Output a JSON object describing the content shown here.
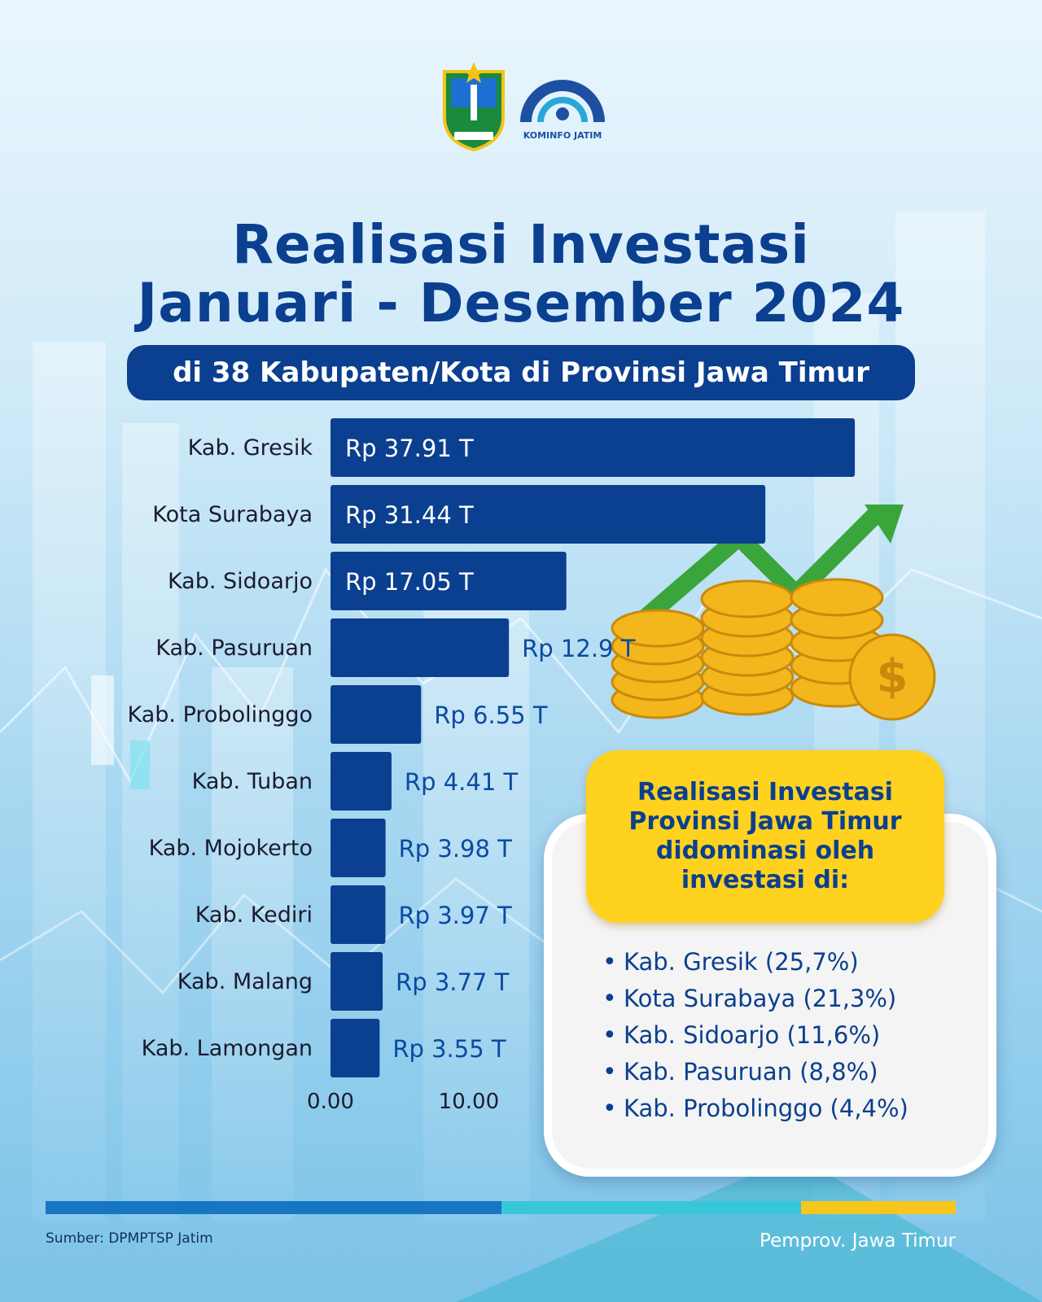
{
  "header": {
    "title_line1": "Realisasi Investasi",
    "title_line2": "Januari - Desember 2024",
    "subtitle": "di 38 Kabupaten/Kota di Provinsi Jawa Timur"
  },
  "logos": {
    "left": "provincial-coat-of-arms",
    "right_text": "KOMINFO JATIM"
  },
  "chart_data": {
    "type": "bar",
    "orientation": "horizontal",
    "categories": [
      "Kab. Gresik",
      "Kota Surabaya",
      "Kab. Sidoarjo",
      "Kab. Pasuruan",
      "Kab. Probolinggo",
      "Kab. Tuban",
      "Kab. Mojokerto",
      "Kab. Kediri",
      "Kab. Malang",
      "Kab. Lamongan"
    ],
    "values": [
      37.91,
      31.44,
      17.05,
      12.9,
      6.55,
      4.41,
      3.98,
      3.97,
      3.77,
      3.55
    ],
    "data_labels": [
      "Rp 37.91 T",
      "Rp 31.44 T",
      "Rp 17.05 T",
      "Rp 12.9 T",
      "Rp 6.55 T",
      "Rp 4.41 T",
      "Rp 3.98 T",
      "Rp 3.97 T",
      "Rp 3.77 T",
      "Rp 3.55 T"
    ],
    "x_ticks": [
      0,
      10
    ],
    "x_tick_labels": [
      "0.00",
      "10.00"
    ],
    "xlim": [
      0,
      38
    ],
    "bar_color": "#0b3f8f",
    "grid": false
  },
  "info_box": {
    "heading": "Realisasi Investasi\nProvinsi Jawa Timur\ndidominasi oleh\ninvestasi di:",
    "items": [
      "Kab. Gresik (25,7%)",
      "Kota Surabaya (21,3%)",
      "Kab. Sidoarjo (11,6%)",
      "Kab. Pasuruan (8,8%)",
      "Kab. Probolinggo (4,4%)"
    ]
  },
  "footer": {
    "source": "Sumber: DPMPTSP Jatim",
    "publisher": "Pemprov. Jawa Timur"
  },
  "colors": {
    "primary": "#0b3f8f",
    "accent_yellow": "#ffd21f",
    "footer_blue": "#1676c2",
    "footer_teal": "#38c6d9",
    "footer_yellow": "#f5c61c"
  }
}
